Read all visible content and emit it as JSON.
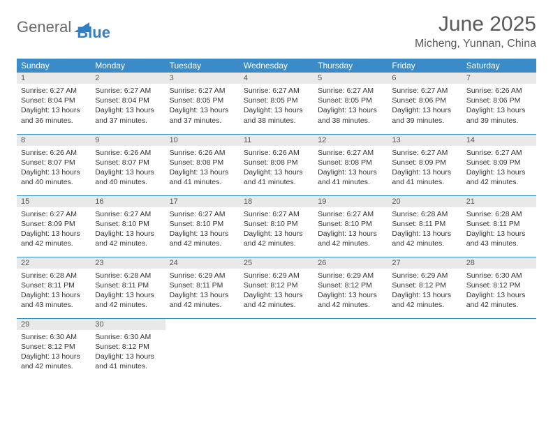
{
  "logo": {
    "text1": "General",
    "text2": "Blue",
    "color1": "#6b6b6b",
    "color2": "#2f7fc2",
    "triangle_color": "#2f7fc2"
  },
  "title": "June 2025",
  "location": "Micheng, Yunnan, China",
  "colors": {
    "header_bg": "#3b8bc9",
    "header_text": "#ffffff",
    "daynum_bg": "#e9e9e9",
    "row_border": "#3b8bc9",
    "text": "#333333"
  },
  "fonts": {
    "title_size": 30,
    "location_size": 16,
    "th_size": 12,
    "cell_size": 10.5
  },
  "weekdays": [
    "Sunday",
    "Monday",
    "Tuesday",
    "Wednesday",
    "Thursday",
    "Friday",
    "Saturday"
  ],
  "grid": [
    [
      {
        "day": "1",
        "sunrise": "Sunrise: 6:27 AM",
        "sunset": "Sunset: 8:04 PM",
        "daylight": "Daylight: 13 hours and 36 minutes."
      },
      {
        "day": "2",
        "sunrise": "Sunrise: 6:27 AM",
        "sunset": "Sunset: 8:04 PM",
        "daylight": "Daylight: 13 hours and 37 minutes."
      },
      {
        "day": "3",
        "sunrise": "Sunrise: 6:27 AM",
        "sunset": "Sunset: 8:05 PM",
        "daylight": "Daylight: 13 hours and 37 minutes."
      },
      {
        "day": "4",
        "sunrise": "Sunrise: 6:27 AM",
        "sunset": "Sunset: 8:05 PM",
        "daylight": "Daylight: 13 hours and 38 minutes."
      },
      {
        "day": "5",
        "sunrise": "Sunrise: 6:27 AM",
        "sunset": "Sunset: 8:05 PM",
        "daylight": "Daylight: 13 hours and 38 minutes."
      },
      {
        "day": "6",
        "sunrise": "Sunrise: 6:27 AM",
        "sunset": "Sunset: 8:06 PM",
        "daylight": "Daylight: 13 hours and 39 minutes."
      },
      {
        "day": "7",
        "sunrise": "Sunrise: 6:26 AM",
        "sunset": "Sunset: 8:06 PM",
        "daylight": "Daylight: 13 hours and 39 minutes."
      }
    ],
    [
      {
        "day": "8",
        "sunrise": "Sunrise: 6:26 AM",
        "sunset": "Sunset: 8:07 PM",
        "daylight": "Daylight: 13 hours and 40 minutes."
      },
      {
        "day": "9",
        "sunrise": "Sunrise: 6:26 AM",
        "sunset": "Sunset: 8:07 PM",
        "daylight": "Daylight: 13 hours and 40 minutes."
      },
      {
        "day": "10",
        "sunrise": "Sunrise: 6:26 AM",
        "sunset": "Sunset: 8:08 PM",
        "daylight": "Daylight: 13 hours and 41 minutes."
      },
      {
        "day": "11",
        "sunrise": "Sunrise: 6:26 AM",
        "sunset": "Sunset: 8:08 PM",
        "daylight": "Daylight: 13 hours and 41 minutes."
      },
      {
        "day": "12",
        "sunrise": "Sunrise: 6:27 AM",
        "sunset": "Sunset: 8:08 PM",
        "daylight": "Daylight: 13 hours and 41 minutes."
      },
      {
        "day": "13",
        "sunrise": "Sunrise: 6:27 AM",
        "sunset": "Sunset: 8:09 PM",
        "daylight": "Daylight: 13 hours and 41 minutes."
      },
      {
        "day": "14",
        "sunrise": "Sunrise: 6:27 AM",
        "sunset": "Sunset: 8:09 PM",
        "daylight": "Daylight: 13 hours and 42 minutes."
      }
    ],
    [
      {
        "day": "15",
        "sunrise": "Sunrise: 6:27 AM",
        "sunset": "Sunset: 8:09 PM",
        "daylight": "Daylight: 13 hours and 42 minutes."
      },
      {
        "day": "16",
        "sunrise": "Sunrise: 6:27 AM",
        "sunset": "Sunset: 8:10 PM",
        "daylight": "Daylight: 13 hours and 42 minutes."
      },
      {
        "day": "17",
        "sunrise": "Sunrise: 6:27 AM",
        "sunset": "Sunset: 8:10 PM",
        "daylight": "Daylight: 13 hours and 42 minutes."
      },
      {
        "day": "18",
        "sunrise": "Sunrise: 6:27 AM",
        "sunset": "Sunset: 8:10 PM",
        "daylight": "Daylight: 13 hours and 42 minutes."
      },
      {
        "day": "19",
        "sunrise": "Sunrise: 6:27 AM",
        "sunset": "Sunset: 8:10 PM",
        "daylight": "Daylight: 13 hours and 42 minutes."
      },
      {
        "day": "20",
        "sunrise": "Sunrise: 6:28 AM",
        "sunset": "Sunset: 8:11 PM",
        "daylight": "Daylight: 13 hours and 42 minutes."
      },
      {
        "day": "21",
        "sunrise": "Sunrise: 6:28 AM",
        "sunset": "Sunset: 8:11 PM",
        "daylight": "Daylight: 13 hours and 43 minutes."
      }
    ],
    [
      {
        "day": "22",
        "sunrise": "Sunrise: 6:28 AM",
        "sunset": "Sunset: 8:11 PM",
        "daylight": "Daylight: 13 hours and 43 minutes."
      },
      {
        "day": "23",
        "sunrise": "Sunrise: 6:28 AM",
        "sunset": "Sunset: 8:11 PM",
        "daylight": "Daylight: 13 hours and 42 minutes."
      },
      {
        "day": "24",
        "sunrise": "Sunrise: 6:29 AM",
        "sunset": "Sunset: 8:11 PM",
        "daylight": "Daylight: 13 hours and 42 minutes."
      },
      {
        "day": "25",
        "sunrise": "Sunrise: 6:29 AM",
        "sunset": "Sunset: 8:12 PM",
        "daylight": "Daylight: 13 hours and 42 minutes."
      },
      {
        "day": "26",
        "sunrise": "Sunrise: 6:29 AM",
        "sunset": "Sunset: 8:12 PM",
        "daylight": "Daylight: 13 hours and 42 minutes."
      },
      {
        "day": "27",
        "sunrise": "Sunrise: 6:29 AM",
        "sunset": "Sunset: 8:12 PM",
        "daylight": "Daylight: 13 hours and 42 minutes."
      },
      {
        "day": "28",
        "sunrise": "Sunrise: 6:30 AM",
        "sunset": "Sunset: 8:12 PM",
        "daylight": "Daylight: 13 hours and 42 minutes."
      }
    ],
    [
      {
        "day": "29",
        "sunrise": "Sunrise: 6:30 AM",
        "sunset": "Sunset: 8:12 PM",
        "daylight": "Daylight: 13 hours and 42 minutes."
      },
      {
        "day": "30",
        "sunrise": "Sunrise: 6:30 AM",
        "sunset": "Sunset: 8:12 PM",
        "daylight": "Daylight: 13 hours and 41 minutes."
      },
      null,
      null,
      null,
      null,
      null
    ]
  ]
}
